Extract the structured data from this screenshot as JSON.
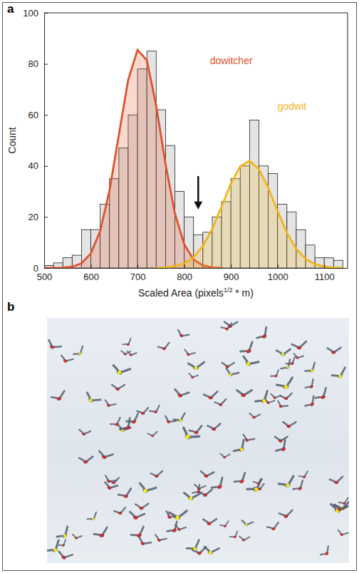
{
  "chart_data": {
    "type": "histogram",
    "panel_label": "a",
    "xlabel": [
      "Scaled Area (pixels",
      "1/2",
      " * m)"
    ],
    "ylabel": "Count",
    "bins": [
      500,
      520,
      540,
      560,
      580,
      600,
      620,
      640,
      660,
      680,
      700,
      720,
      740,
      760,
      780,
      800,
      820,
      840,
      860,
      880,
      900,
      920,
      940,
      960,
      980,
      1000,
      1020,
      1040,
      1060,
      1080,
      1100,
      1120,
      1140
    ],
    "values": [
      1,
      2,
      4,
      5,
      15,
      15,
      25,
      35,
      47,
      60,
      78,
      85,
      62,
      48,
      30,
      20,
      13,
      14,
      20,
      26,
      35,
      40,
      58,
      40,
      37,
      25,
      22,
      15,
      9,
      4,
      4,
      3
    ],
    "color": "#e4e4e4",
    "xlim": [
      500,
      1150
    ],
    "ylim": [
      0,
      100
    ],
    "xticks": [
      500,
      600,
      700,
      800,
      900,
      1000,
      1100
    ],
    "yticks": [
      0,
      20,
      40,
      60,
      80,
      100
    ],
    "series": [
      {
        "name": "dowitcher",
        "color": "#e0522b",
        "type": "line",
        "label_x": 855,
        "label_y": 80,
        "x": [
          500,
          520,
          540,
          560,
          580,
          600,
          620,
          640,
          660,
          680,
          700,
          720,
          740,
          760,
          780,
          800,
          820,
          840,
          860,
          880
        ],
        "values": [
          0,
          0,
          0.1,
          0.5,
          1.8,
          5.7,
          14.5,
          30.4,
          52.2,
          73.7,
          85.5,
          81.4,
          63.6,
          40.7,
          21.4,
          9.3,
          3.3,
          1,
          0.2,
          0
        ]
      },
      {
        "name": "godwit",
        "color": "#efb51a",
        "type": "line",
        "label_x": 1000,
        "label_y": 62,
        "x": [
          740,
          760,
          780,
          800,
          820,
          840,
          860,
          880,
          900,
          920,
          940,
          960,
          980,
          1000,
          1020,
          1040,
          1060,
          1080,
          1100,
          1120,
          1140
        ],
        "values": [
          0,
          0.2,
          0.7,
          1.8,
          4.2,
          8.6,
          15.3,
          24.1,
          33.1,
          39.8,
          42,
          38.8,
          31.4,
          22.3,
          13.8,
          7.5,
          3.6,
          1.5,
          0.5,
          0.2,
          0.1
        ]
      }
    ],
    "arrow": {
      "x": 830,
      "y": [
        36,
        23
      ]
    }
  },
  "image_panel": {
    "panel_label": "b"
  }
}
